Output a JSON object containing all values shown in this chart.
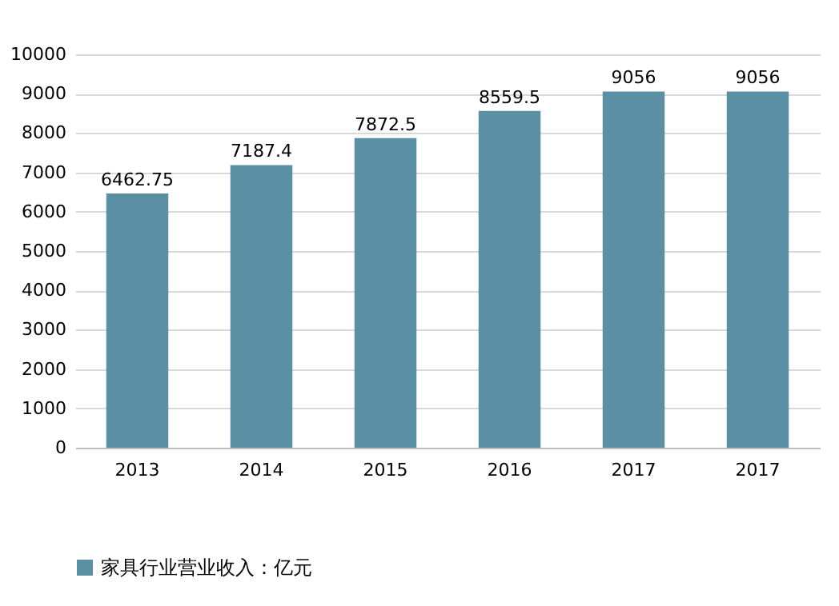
{
  "chart_data": {
    "type": "bar",
    "categories": [
      "2013",
      "2014",
      "2015",
      "2016",
      "2017",
      "2017"
    ],
    "series": [
      {
        "name": "家具行业营业收入：亿元",
        "color": "#5b8fa3",
        "values": [
          6462.75,
          7187.4,
          7872.5,
          8559.5,
          9056,
          9056
        ]
      }
    ],
    "ylim": [
      0,
      10000
    ],
    "yticks": [
      0,
      1000,
      2000,
      3000,
      4000,
      5000,
      6000,
      7000,
      8000,
      9000,
      10000
    ],
    "grid": "y",
    "legend": "bottom",
    "data_labels": true
  }
}
